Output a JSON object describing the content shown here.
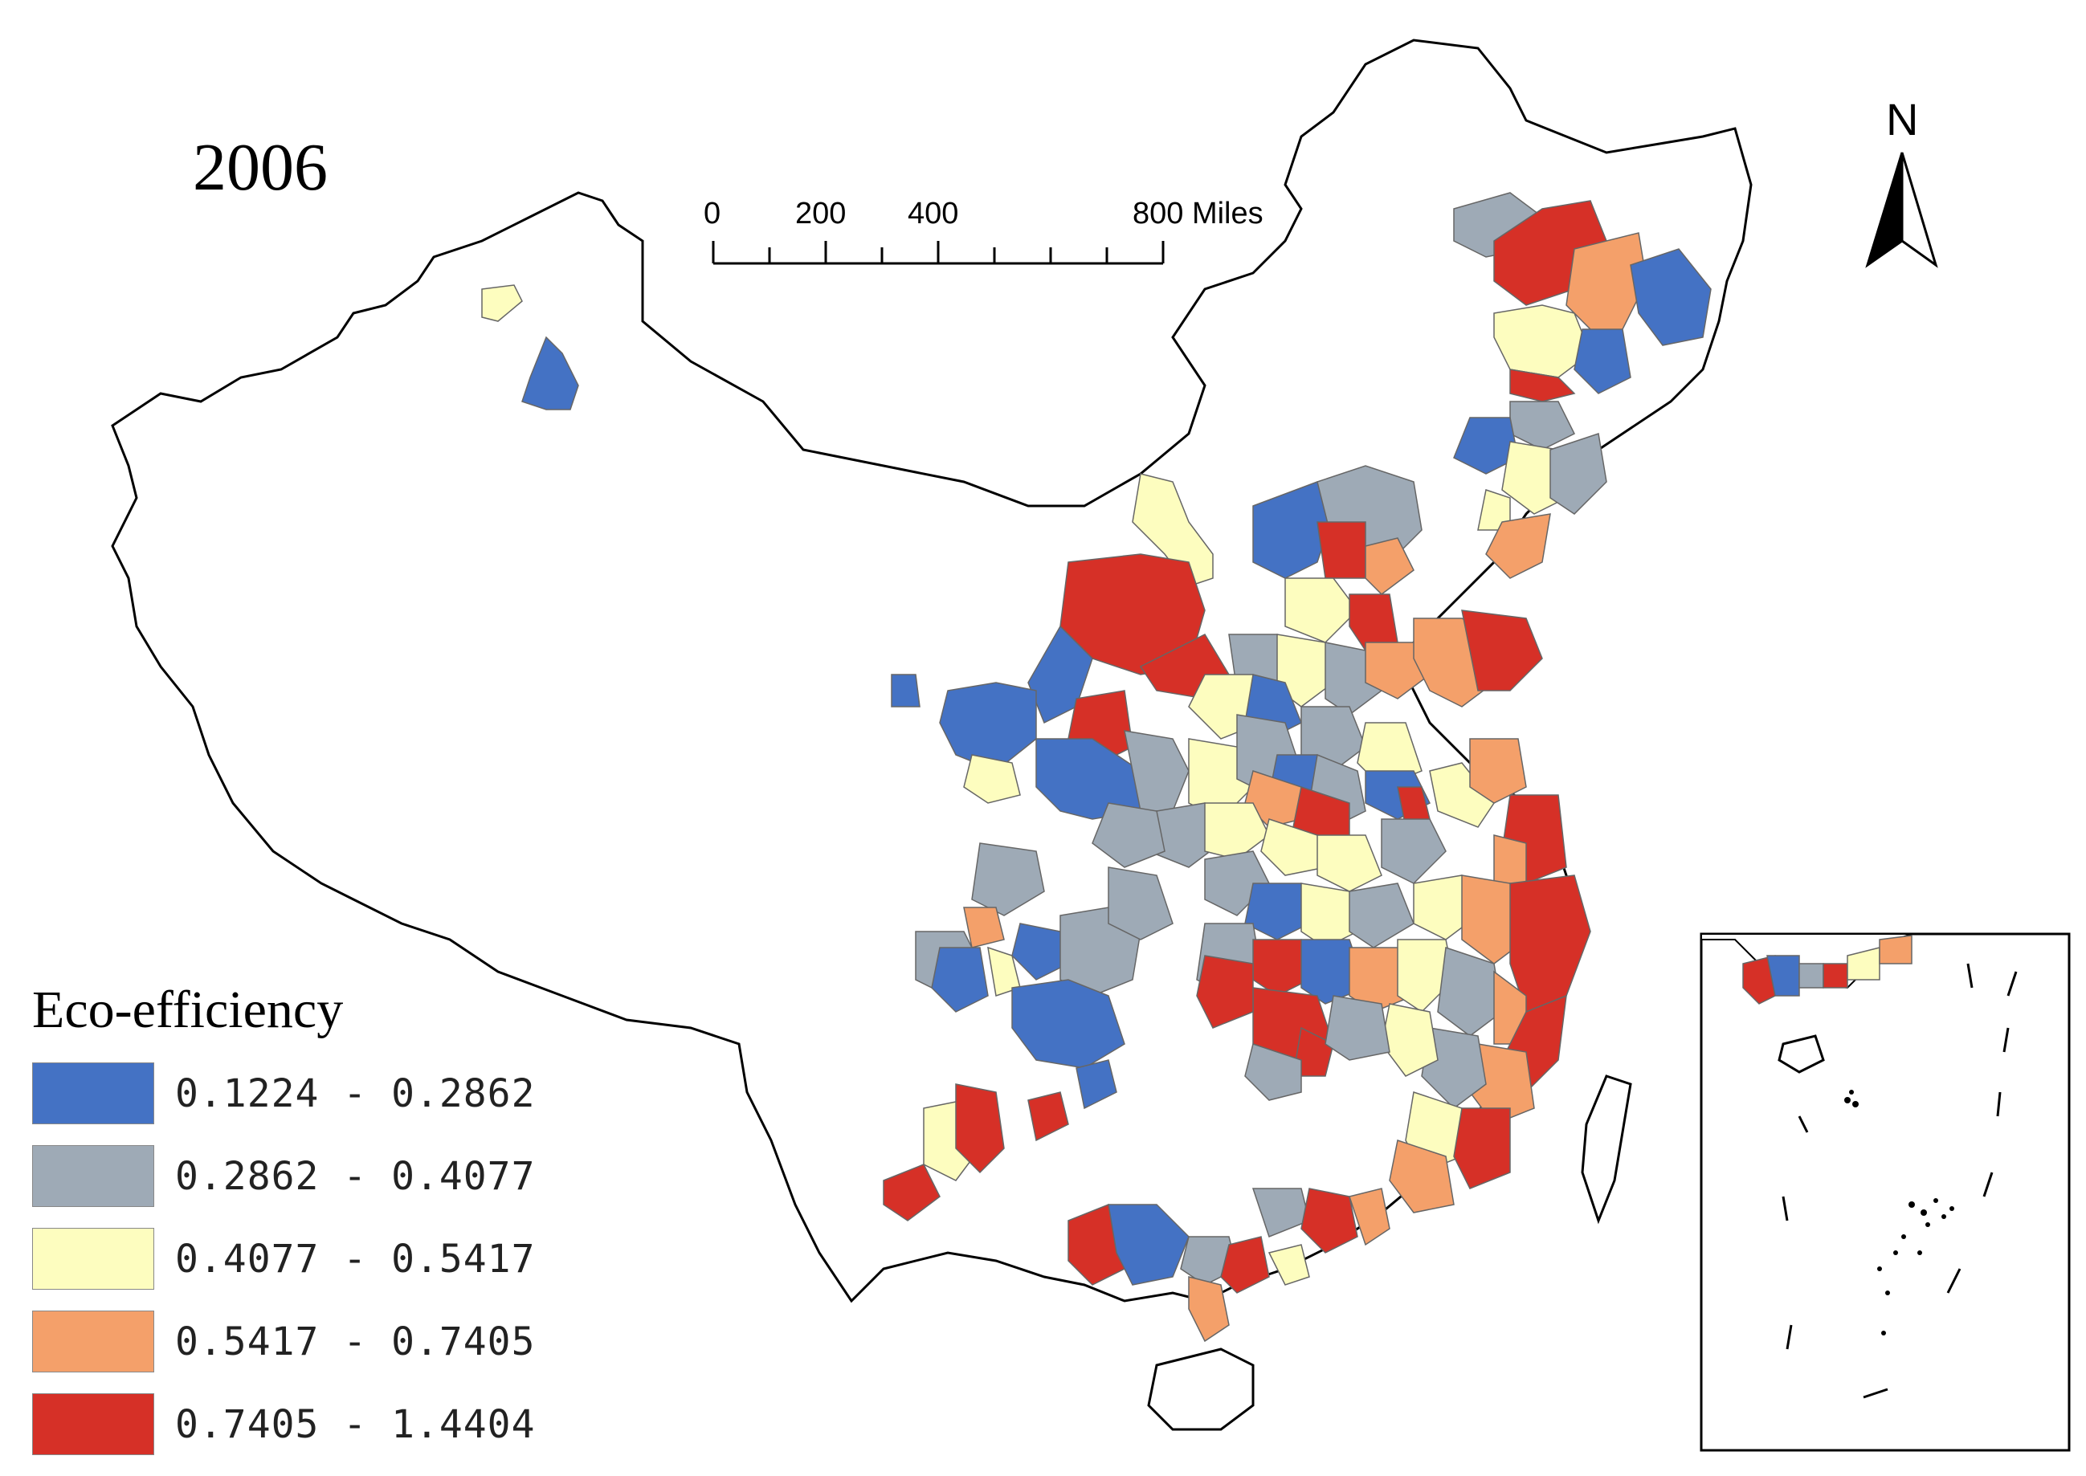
{
  "map": {
    "year_label": "2006",
    "legend": {
      "title": "Eco-efficiency",
      "classes": [
        {
          "range": "0.1224 - 0.2862",
          "color": "#4472c4"
        },
        {
          "range": "0.2862 - 0.4077",
          "color": "#9eaab6"
        },
        {
          "range": "0.4077 - 0.5417",
          "color": "#fdfdbf"
        },
        {
          "range": "0.5417 - 0.7405",
          "color": "#f4a06a"
        },
        {
          "range": "0.7405 - 1.4404",
          "color": "#d63027"
        }
      ]
    },
    "scale_bar": {
      "ticks": [
        "0",
        "200",
        "400",
        "800 Miles"
      ]
    },
    "north_arrow": {
      "label": "N"
    }
  }
}
